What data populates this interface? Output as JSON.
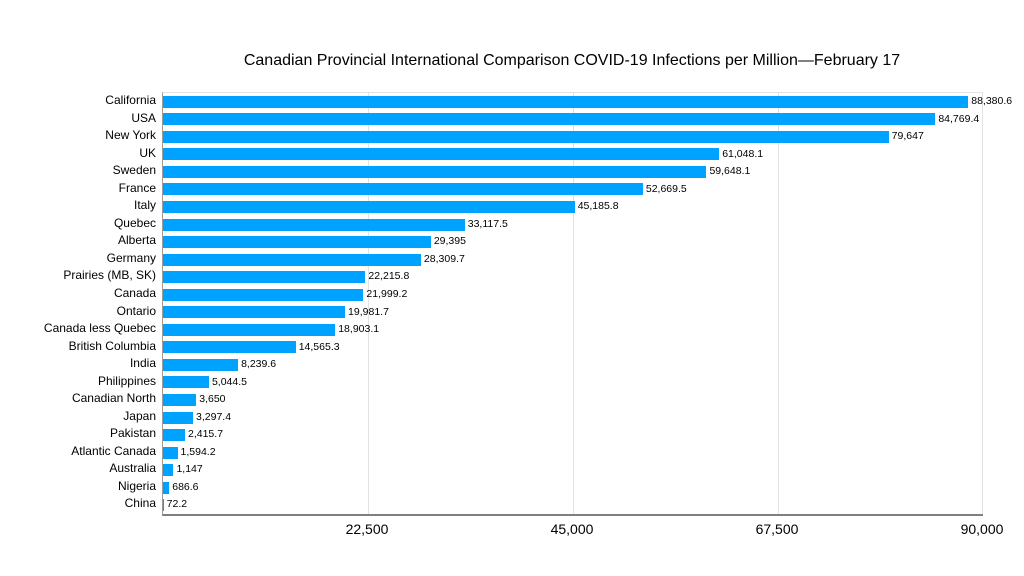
{
  "chart_data": {
    "type": "bar",
    "orientation": "horizontal",
    "title": "Canadian Provincial International Comparison COVID-19 Infections per Million—February 17",
    "categories": [
      "California",
      "USA",
      "New York",
      "UK",
      "Sweden",
      "France",
      "Italy",
      "Quebec",
      "Alberta",
      "Germany",
      "Prairies (MB, SK)",
      "Canada",
      "Ontario",
      "Canada less Quebec",
      "British Columbia",
      "India",
      "Philippines",
      "Canadian North",
      "Japan",
      "Pakistan",
      "Atlantic Canada",
      "Australia",
      "Nigeria",
      "China"
    ],
    "values": [
      88380.6,
      84769.4,
      79647,
      61048.1,
      59648.1,
      52669.5,
      45185.8,
      33117.5,
      29395,
      28309.7,
      22215.8,
      21999.2,
      19981.7,
      18903.1,
      14565.3,
      8239.6,
      5044.5,
      3650,
      3297.4,
      2415.7,
      1594.2,
      1147,
      686.6,
      72.2
    ],
    "value_labels": [
      "88,380.6",
      "84,769.4",
      "79,647",
      "61,048.1",
      "59,648.1",
      "52,669.5",
      "45,185.8",
      "33,117.5",
      "29,395",
      "28,309.7",
      "22,215.8",
      "21,999.2",
      "19,981.7",
      "18,903.1",
      "14,565.3",
      "8,239.6",
      "5,044.5",
      "3,650",
      "3,297.4",
      "2,415.7",
      "1,594.2",
      "1,147",
      "686.6",
      "72.2"
    ],
    "xlabel": "",
    "ylabel": "",
    "xlim": [
      0,
      90000
    ],
    "xticks": [
      22500,
      45000,
      67500,
      90000
    ],
    "xtick_labels": [
      "22,500",
      "45,000",
      "67,500",
      "90,000"
    ],
    "grid": "vertical-gridlines-on",
    "legend": "none",
    "bar_color": "#00a2ff",
    "axis_color": "#7f7f7f",
    "grid_color": "#e2e2e2",
    "text_color": "#000000"
  }
}
